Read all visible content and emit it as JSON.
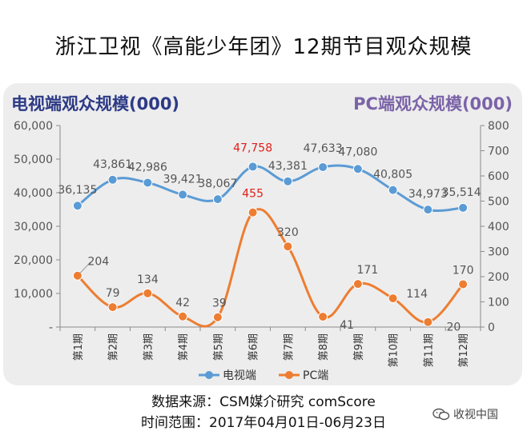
{
  "title": "浙江卫视《高能少年团》12期节目观众规模",
  "source_line": "数据来源：CSM媒介研究 comScore",
  "period_line": "时间范围：2017年04月01日-06月23日",
  "watermark": {
    "text": "收视中国",
    "icon": "wechat-icon"
  },
  "colors": {
    "tv": "#5b9bd5",
    "pc": "#ed7d31",
    "axis_title": "#2d3a86",
    "axis_title_right": "#7b63a8",
    "highlight": "#e0201b",
    "panel": "#ededed"
  },
  "chart_data": {
    "type": "line",
    "categories": [
      "第1期",
      "第2期",
      "第3期",
      "第4期",
      "第5期",
      "第6期",
      "第7期",
      "第8期",
      "第9期",
      "第10期",
      "第11期",
      "第12期"
    ],
    "ylabel_left": "电视端观众规模(000)",
    "ylabel_right": "PC端观众规模(000)",
    "ylim_left": [
      0,
      60000
    ],
    "ylim_right": [
      0,
      800
    ],
    "yticks_left": [
      "-",
      "10,000",
      "20,000",
      "30,000",
      "40,000",
      "50,000",
      "60,000"
    ],
    "yticks_right": [
      "0",
      "100",
      "200",
      "300",
      "400",
      "500",
      "600",
      "700",
      "800"
    ],
    "legend_position": "bottom",
    "smooth": true,
    "series": [
      {
        "name": "电视端",
        "axis": "left",
        "color": "#5b9bd5",
        "values": [
          36135,
          43861,
          42986,
          39421,
          38067,
          47758,
          43381,
          47633,
          47080,
          40805,
          34973,
          35514
        ],
        "labels": [
          "36,135",
          "43,861",
          "42,986",
          "39,421",
          "38,067",
          "47,758",
          "43,381",
          "47,633",
          "47,080",
          "40,805",
          "34,973",
          "35,514"
        ],
        "highlight_index": 5
      },
      {
        "name": "PC端",
        "axis": "right",
        "color": "#ed7d31",
        "values": [
          204,
          79,
          134,
          42,
          39,
          455,
          320,
          41,
          171,
          114,
          20,
          170
        ],
        "labels": [
          "204",
          "79",
          "134",
          "42",
          "39",
          "455",
          "320",
          "41",
          "171",
          "114",
          "20",
          "170"
        ],
        "highlight_index": 5
      }
    ]
  }
}
